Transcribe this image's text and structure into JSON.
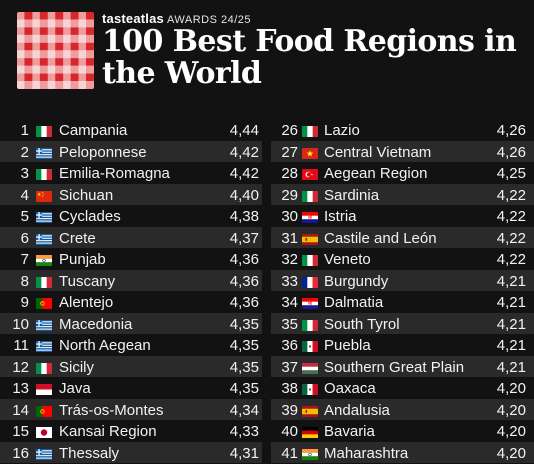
{
  "header": {
    "brand_name": "tasteatlas",
    "brand_awards": "AWARDS 24/25",
    "title": "100 Best Food Regions in the World",
    "logo_colors": [
      "#d9262b",
      "#ffffff"
    ]
  },
  "left_column": [
    {
      "rank": "1",
      "name": "Campania",
      "score": "4,44",
      "flag": "italy-flag"
    },
    {
      "rank": "2",
      "name": "Peloponnese",
      "score": "4,42",
      "flag": "greece-flag"
    },
    {
      "rank": "3",
      "name": "Emilia-Romagna",
      "score": "4,42",
      "flag": "italy-flag"
    },
    {
      "rank": "4",
      "name": "Sichuan",
      "score": "4,40",
      "flag": "china-flag"
    },
    {
      "rank": "5",
      "name": "Cyclades",
      "score": "4,38",
      "flag": "greece-flag"
    },
    {
      "rank": "6",
      "name": "Crete",
      "score": "4,37",
      "flag": "greece-flag"
    },
    {
      "rank": "7",
      "name": "Punjab",
      "score": "4,36",
      "flag": "india-flag"
    },
    {
      "rank": "8",
      "name": "Tuscany",
      "score": "4,36",
      "flag": "italy-flag"
    },
    {
      "rank": "9",
      "name": "Alentejo",
      "score": "4,36",
      "flag": "portugal-flag"
    },
    {
      "rank": "10",
      "name": "Macedonia",
      "score": "4,35",
      "flag": "greece-flag"
    },
    {
      "rank": "11",
      "name": "North Aegean",
      "score": "4,35",
      "flag": "greece-flag"
    },
    {
      "rank": "12",
      "name": "Sicily",
      "score": "4,35",
      "flag": "italy-flag"
    },
    {
      "rank": "13",
      "name": "Java",
      "score": "4,35",
      "flag": "indonesia-flag"
    },
    {
      "rank": "14",
      "name": "Trás-os-Montes",
      "score": "4,34",
      "flag": "portugal-flag"
    },
    {
      "rank": "15",
      "name": "Kansai Region",
      "score": "4,33",
      "flag": "japan-flag"
    },
    {
      "rank": "16",
      "name": "Thessaly",
      "score": "4,31",
      "flag": "greece-flag"
    }
  ],
  "right_column": [
    {
      "rank": "26",
      "name": "Lazio",
      "score": "4,26",
      "flag": "italy-flag"
    },
    {
      "rank": "27",
      "name": "Central Vietnam",
      "score": "4,26",
      "flag": "vietnam-flag"
    },
    {
      "rank": "28",
      "name": "Aegean Region",
      "score": "4,25",
      "flag": "turkey-flag"
    },
    {
      "rank": "29",
      "name": "Sardinia",
      "score": "4,22",
      "flag": "italy-flag"
    },
    {
      "rank": "30",
      "name": "Istria",
      "score": "4,22",
      "flag": "croatia-flag"
    },
    {
      "rank": "31",
      "name": "Castile and León",
      "score": "4,22",
      "flag": "spain-flag"
    },
    {
      "rank": "32",
      "name": "Veneto",
      "score": "4,22",
      "flag": "italy-flag"
    },
    {
      "rank": "33",
      "name": "Burgundy",
      "score": "4,21",
      "flag": "france-flag"
    },
    {
      "rank": "34",
      "name": "Dalmatia",
      "score": "4,21",
      "flag": "croatia-flag"
    },
    {
      "rank": "35",
      "name": "South Tyrol",
      "score": "4,21",
      "flag": "italy-flag"
    },
    {
      "rank": "36",
      "name": "Puebla",
      "score": "4,21",
      "flag": "mexico-flag"
    },
    {
      "rank": "37",
      "name": "Southern Great Plain",
      "score": "4,21",
      "flag": "hungary-flag"
    },
    {
      "rank": "38",
      "name": "Oaxaca",
      "score": "4,20",
      "flag": "mexico-flag"
    },
    {
      "rank": "39",
      "name": "Andalusia",
      "score": "4,20",
      "flag": "spain-flag"
    },
    {
      "rank": "40",
      "name": "Bavaria",
      "score": "4,20",
      "flag": "germany-flag"
    },
    {
      "rank": "41",
      "name": "Maharashtra",
      "score": "4,20",
      "flag": "india-flag"
    }
  ],
  "colors": {
    "background": "#121212",
    "row_alt": "#2a2a2a",
    "text": "#f2f2f2"
  }
}
